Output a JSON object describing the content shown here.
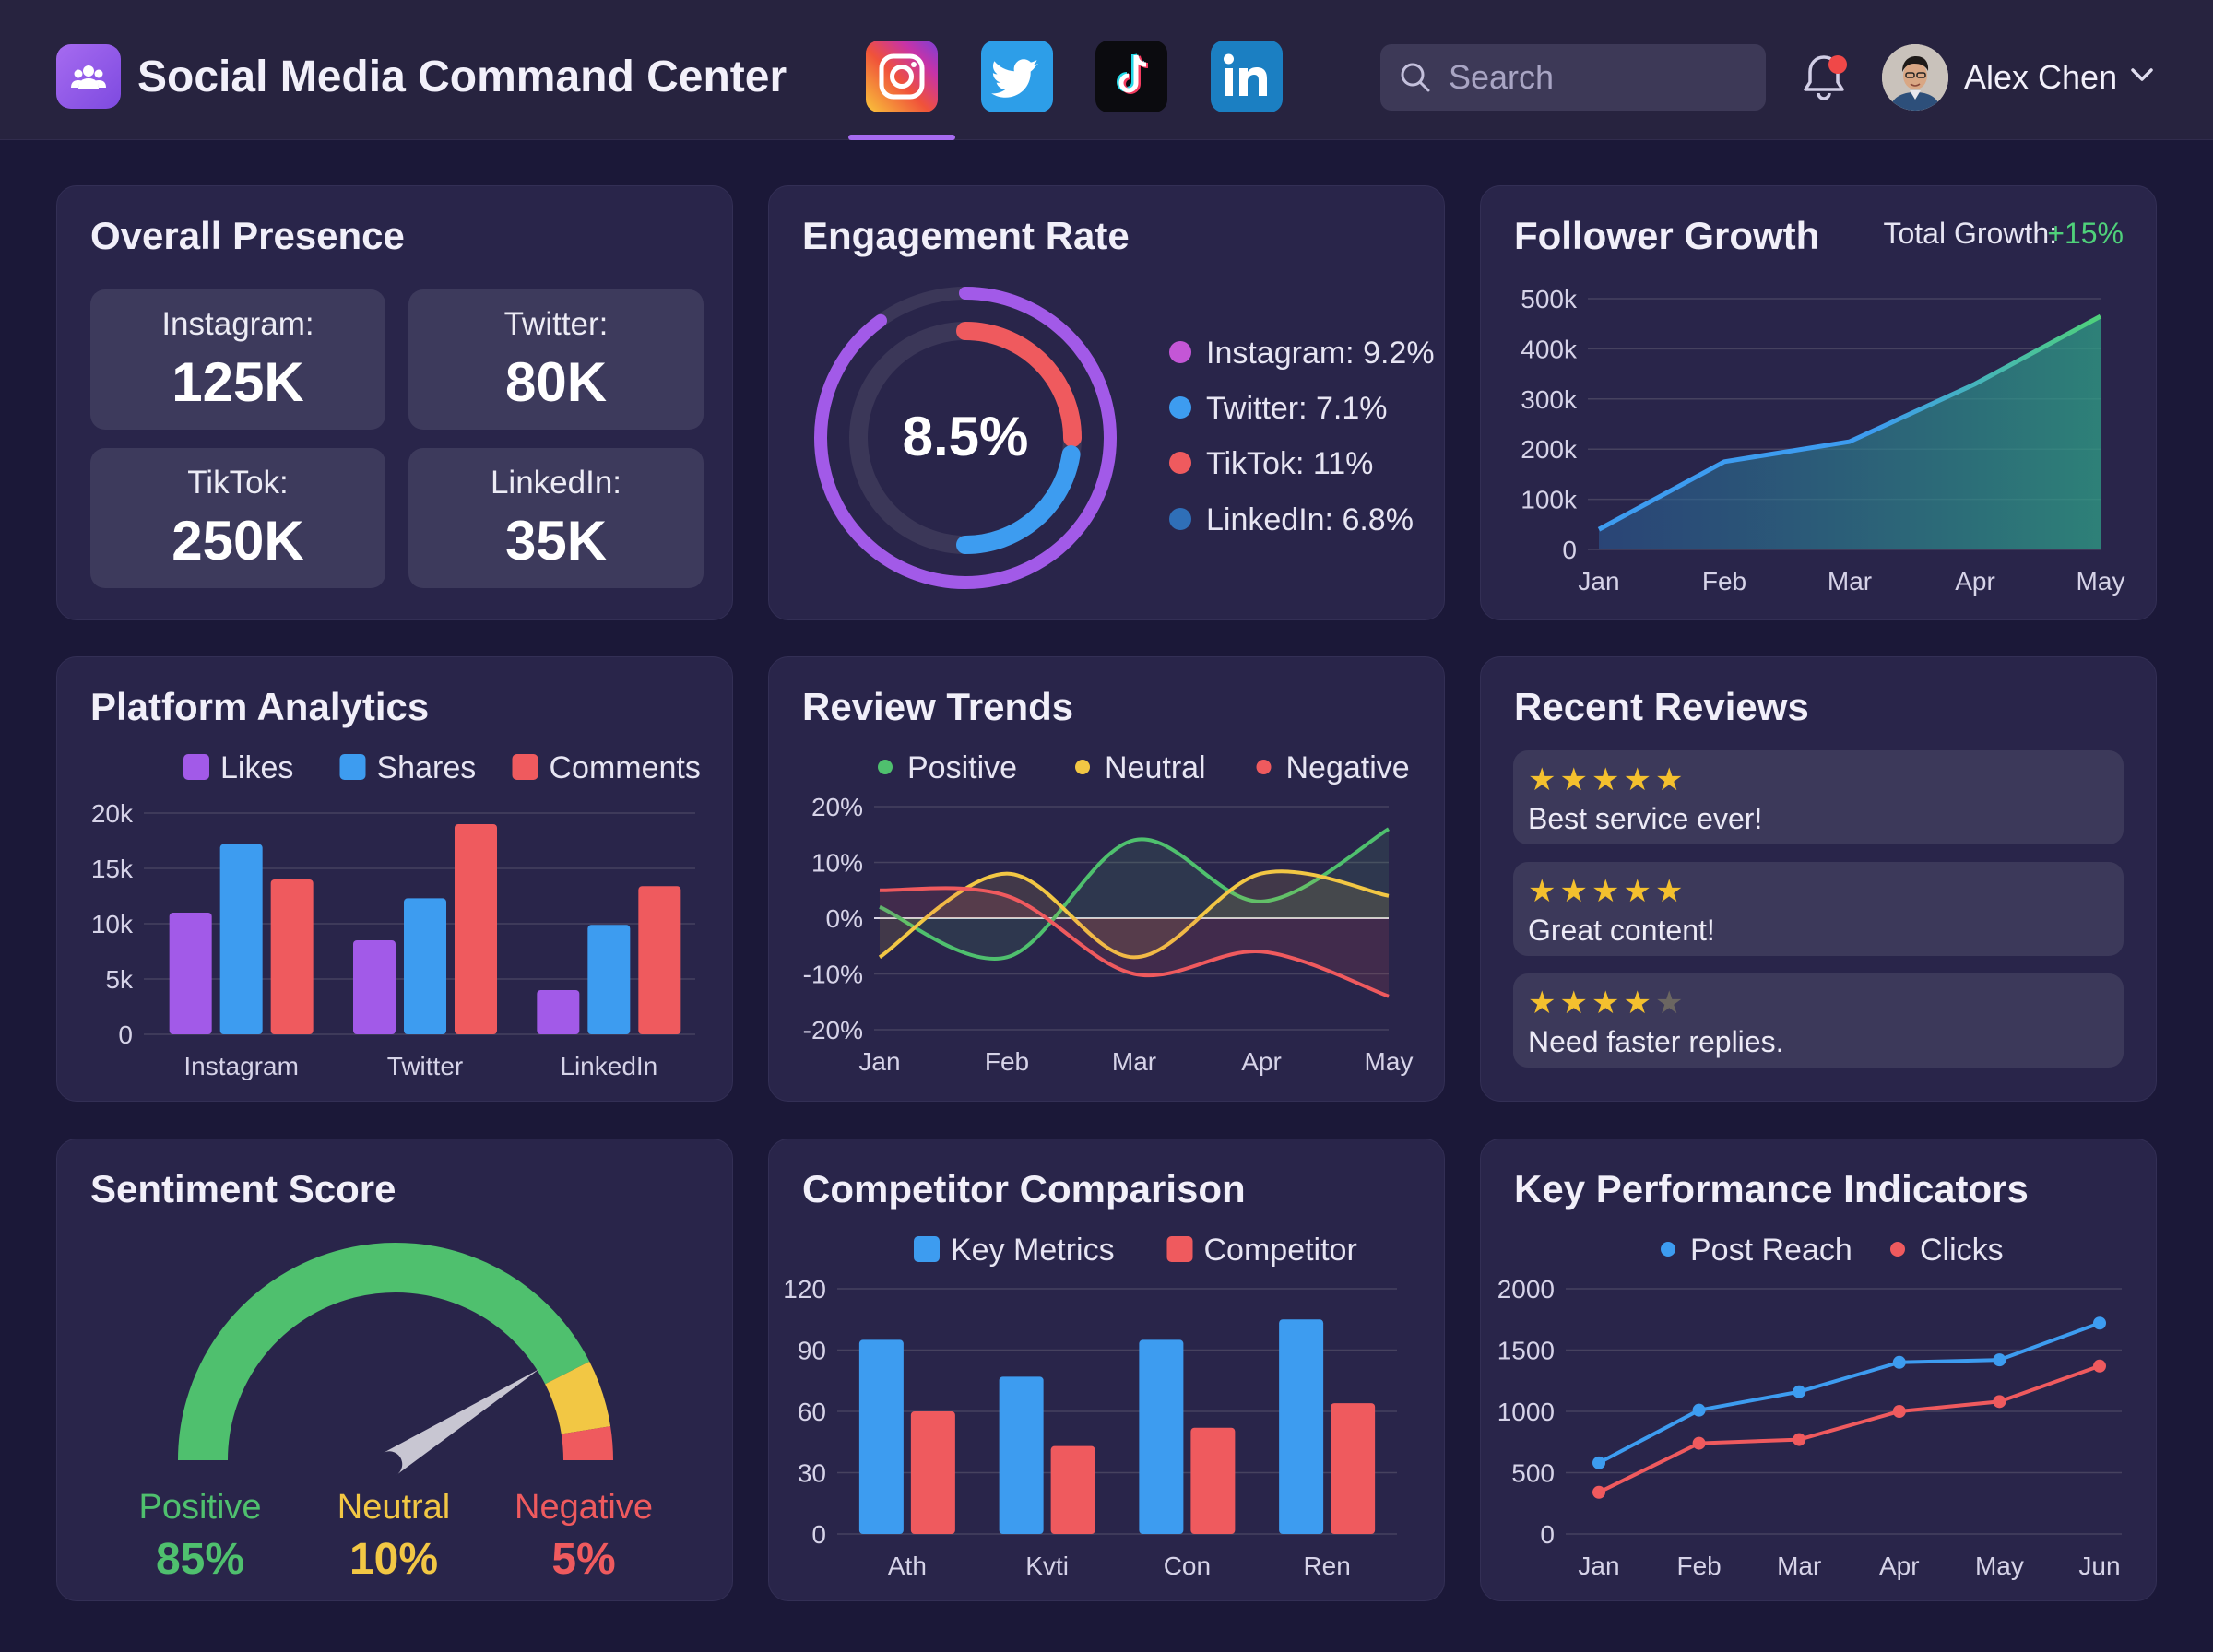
{
  "header": {
    "title": "Social Media Command Center",
    "platforms": [
      "instagram-icon",
      "twitter-icon",
      "tiktok-icon",
      "linkedin-icon"
    ],
    "search_placeholder": "Search",
    "user_name": "Alex Chen"
  },
  "overall_presence": {
    "title": "Overall Presence",
    "tiles": [
      {
        "label": "Instagram:",
        "value": "125K"
      },
      {
        "label": "Twitter:",
        "value": "80K"
      },
      {
        "label": "TikTok:",
        "value": "250K"
      },
      {
        "label": "LinkedIn:",
        "value": "35K"
      }
    ]
  },
  "engagement": {
    "title": "Engagement Rate",
    "center_value": "8.5%",
    "legend": [
      {
        "label": "Instagram: 9.2%",
        "color": "#c456d6"
      },
      {
        "label": "Twitter: 7.1%",
        "color": "#3d9cf0"
      },
      {
        "label": "TikTok: 11%",
        "color": "#ef5a5e"
      },
      {
        "label": "LinkedIn: 6.8%",
        "color": "#2f6fb8"
      }
    ],
    "outer_ring_fraction": 0.9,
    "inner_ring_fraction": 0.5
  },
  "follower_growth": {
    "title": "Follower Growth",
    "total_label": "Total Growth:",
    "total_value": "+15%"
  },
  "platform_analytics": {
    "title": "Platform Analytics"
  },
  "review_trends": {
    "title": "Review Trends"
  },
  "recent_reviews": {
    "title": "Recent Reviews",
    "items": [
      {
        "stars": 5,
        "text": "Best service ever!"
      },
      {
        "stars": 5,
        "text": "Great content!"
      },
      {
        "stars": 4,
        "text": "Need faster replies."
      }
    ]
  },
  "sentiment": {
    "title": "Sentiment Score",
    "items": [
      {
        "label": "Positive",
        "value": "85%",
        "color": "#4fc06e"
      },
      {
        "label": "Neutral",
        "value": "10%",
        "color": "#f2c744"
      },
      {
        "label": "Negative",
        "value": "5%",
        "color": "#ef5a5e"
      }
    ],
    "needle_value": 0.82
  },
  "competitor": {
    "title": "Competitor Comparison"
  },
  "kpi": {
    "title": "Key Performance Indicators"
  },
  "chart_data": [
    {
      "id": "follower_growth",
      "type": "area",
      "categories": [
        "Jan",
        "Feb",
        "Mar",
        "Apr",
        "May"
      ],
      "series": [
        {
          "name": "Followers",
          "values": [
            40000,
            175000,
            215000,
            330000,
            465000
          ]
        }
      ],
      "y_ticks": [
        "0",
        "100k",
        "200k",
        "300k",
        "400k",
        "500k"
      ],
      "ylim": [
        0,
        500000
      ],
      "grid": true
    },
    {
      "id": "platform_analytics",
      "type": "bar",
      "categories": [
        "Instagram",
        "Twitter",
        "LinkedIn"
      ],
      "series": [
        {
          "name": "Likes",
          "values": [
            11000,
            8500,
            4000
          ],
          "color": "#a25ae8"
        },
        {
          "name": "Shares",
          "values": [
            17200,
            12300,
            9900
          ],
          "color": "#3d9cf0"
        },
        {
          "name": "Comments",
          "values": [
            14000,
            19000,
            13400
          ],
          "color": "#ef5a5e"
        }
      ],
      "y_ticks": [
        "0",
        "5k",
        "10k",
        "15k",
        "20k"
      ],
      "ylim": [
        0,
        20000
      ],
      "legend": "top",
      "grid": true
    },
    {
      "id": "review_trends",
      "type": "line",
      "categories": [
        "Jan",
        "Feb",
        "Mar",
        "Apr",
        "May"
      ],
      "series": [
        {
          "name": "Positive",
          "values": [
            2,
            -7,
            14,
            3,
            16
          ],
          "color": "#4fc06e"
        },
        {
          "name": "Neutral",
          "values": [
            -7,
            8,
            -7,
            8,
            4
          ],
          "color": "#f2c744"
        },
        {
          "name": "Negative",
          "values": [
            5,
            4,
            -10,
            -6,
            -14
          ],
          "color": "#ef5a5e"
        }
      ],
      "y_ticks": [
        "-20%",
        "-10%",
        "0%",
        "10%",
        "20%"
      ],
      "ylim": [
        -20,
        20
      ],
      "legend": "top",
      "grid": true
    },
    {
      "id": "competitor",
      "type": "bar",
      "categories": [
        "Ath",
        "Kvti",
        "Con",
        "Ren"
      ],
      "series": [
        {
          "name": "Key Metrics",
          "values": [
            95,
            77,
            95,
            105
          ],
          "color": "#3d9cf0"
        },
        {
          "name": "Competitor",
          "values": [
            60,
            43,
            52,
            64
          ],
          "color": "#ef5a5e"
        }
      ],
      "y_ticks": [
        "0",
        "30",
        "60",
        "90",
        "120"
      ],
      "ylim": [
        0,
        120
      ],
      "legend": "top",
      "grid": true
    },
    {
      "id": "kpi",
      "type": "line",
      "categories": [
        "Jan",
        "Feb",
        "Mar",
        "Apr",
        "May",
        "Jun"
      ],
      "series": [
        {
          "name": "Post Reach",
          "values": [
            580,
            1010,
            1160,
            1400,
            1420,
            1720
          ],
          "color": "#3d9cf0"
        },
        {
          "name": "Clicks",
          "values": [
            340,
            740,
            770,
            1000,
            1080,
            1370
          ],
          "color": "#ef5a5e"
        }
      ],
      "y_ticks": [
        "0",
        "500",
        "1000",
        "1500",
        "2000"
      ],
      "ylim": [
        0,
        2000
      ],
      "legend": "top",
      "grid": true
    }
  ]
}
